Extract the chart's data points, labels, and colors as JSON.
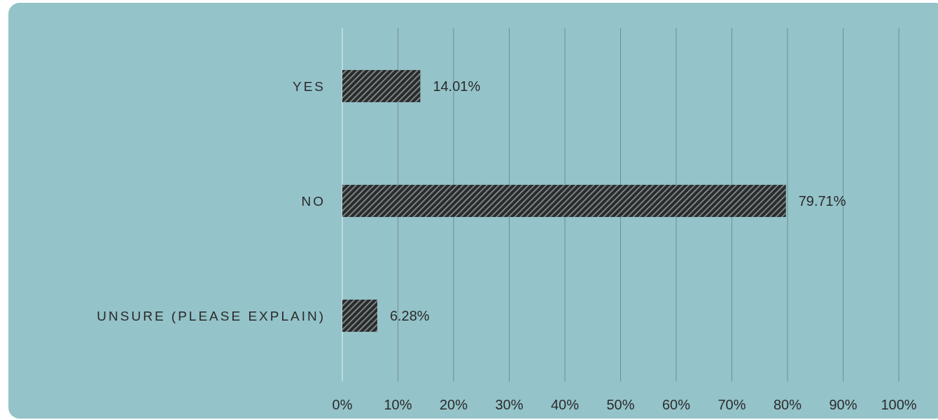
{
  "chart_data": {
    "type": "bar",
    "orientation": "horizontal",
    "categories": [
      "YES",
      "NO",
      "UNSURE (PLEASE EXPLAIN)"
    ],
    "values": [
      14.01,
      79.71,
      6.28
    ],
    "value_labels": [
      "14.01%",
      "79.71%",
      "6.28%"
    ],
    "color": "#2b2b2b",
    "xlim": [
      0,
      100
    ],
    "xticks": [
      {
        "value": 0,
        "label": "0%"
      },
      {
        "value": 10,
        "label": "10%"
      },
      {
        "value": 20,
        "label": "20%"
      },
      {
        "value": 30,
        "label": "30%"
      },
      {
        "value": 40,
        "label": "40%"
      },
      {
        "value": 50,
        "label": "50%"
      },
      {
        "value": 60,
        "label": "60%"
      },
      {
        "value": 70,
        "label": "70%"
      },
      {
        "value": 80,
        "label": "80%"
      },
      {
        "value": 90,
        "label": "90%"
      },
      {
        "value": 100,
        "label": "100%"
      }
    ],
    "grid": "x"
  }
}
